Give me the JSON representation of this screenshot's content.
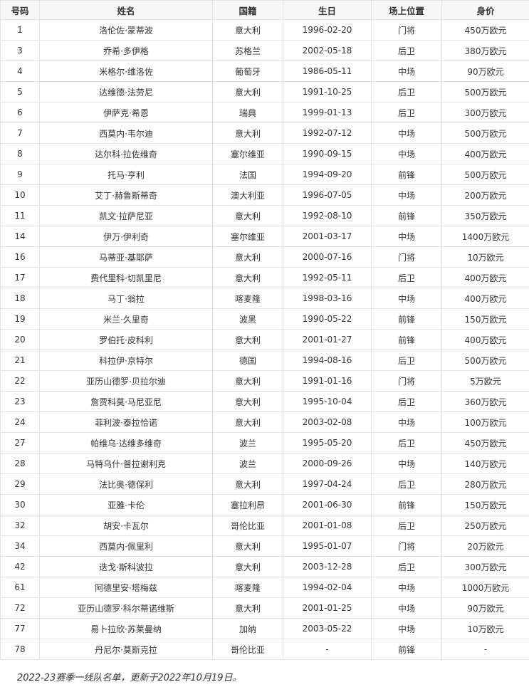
{
  "table": {
    "headers": [
      "号码",
      "姓名",
      "国籍",
      "生日",
      "场上位置",
      "身价"
    ],
    "rows": [
      [
        "1",
        "洛伦佐·蒙蒂波",
        "意大利",
        "1996-02-20",
        "门将",
        "450万欧元"
      ],
      [
        "3",
        "乔希·多伊格",
        "苏格兰",
        "2002-05-18",
        "后卫",
        "380万欧元"
      ],
      [
        "4",
        "米格尔·维洛佐",
        "葡萄牙",
        "1986-05-11",
        "中场",
        "90万欧元"
      ],
      [
        "5",
        "达维德·法劳尼",
        "意大利",
        "1991-10-25",
        "后卫",
        "500万欧元"
      ],
      [
        "6",
        "伊萨克·希恩",
        "瑞典",
        "1999-01-13",
        "后卫",
        "300万欧元"
      ],
      [
        "7",
        "西莫内·韦尔迪",
        "意大利",
        "1992-07-12",
        "中场",
        "500万欧元"
      ],
      [
        "8",
        "达尔科·拉佐维奇",
        "塞尔维亚",
        "1990-09-15",
        "中场",
        "400万欧元"
      ],
      [
        "9",
        "托马·亨利",
        "法国",
        "1994-09-20",
        "前锋",
        "500万欧元"
      ],
      [
        "10",
        "艾丁·赫鲁斯蒂奇",
        "澳大利亚",
        "1996-07-05",
        "中场",
        "200万欧元"
      ],
      [
        "11",
        "凯文·拉萨尼亚",
        "意大利",
        "1992-08-10",
        "前锋",
        "350万欧元"
      ],
      [
        "14",
        "伊万·伊利奇",
        "塞尔维亚",
        "2001-03-17",
        "中场",
        "1400万欧元"
      ],
      [
        "16",
        "马蒂亚·基耶萨",
        "意大利",
        "2000-07-16",
        "门将",
        "10万欧元"
      ],
      [
        "17",
        "费代里科·切凯里尼",
        "意大利",
        "1992-05-11",
        "后卫",
        "400万欧元"
      ],
      [
        "18",
        "马丁·翁拉",
        "喀麦隆",
        "1998-03-16",
        "中场",
        "400万欧元"
      ],
      [
        "19",
        "米兰·久里奇",
        "波黑",
        "1990-05-22",
        "前锋",
        "150万欧元"
      ],
      [
        "20",
        "罗伯托·皮科利",
        "意大利",
        "2001-01-27",
        "前锋",
        "400万欧元"
      ],
      [
        "21",
        "科拉伊·京特尔",
        "德国",
        "1994-08-16",
        "后卫",
        "500万欧元"
      ],
      [
        "22",
        "亚历山德罗·贝拉尔迪",
        "意大利",
        "1991-01-16",
        "门将",
        "5万欧元"
      ],
      [
        "23",
        "詹贾科莫·马尼亚尼",
        "意大利",
        "1995-10-04",
        "后卫",
        "360万欧元"
      ],
      [
        "24",
        "菲利波·泰拉恰诺",
        "意大利",
        "2003-02-08",
        "中场",
        "100万欧元"
      ],
      [
        "27",
        "帕维乌·达维多维奇",
        "波兰",
        "1995-05-20",
        "后卫",
        "450万欧元"
      ],
      [
        "28",
        "马特乌什·普拉谢利克",
        "波兰",
        "2000-09-26",
        "中场",
        "140万欧元"
      ],
      [
        "29",
        "法比奥·德保利",
        "意大利",
        "1997-04-24",
        "后卫",
        "280万欧元"
      ],
      [
        "30",
        "亚雅·卡伦",
        "塞拉利昂",
        "2001-06-30",
        "前锋",
        "150万欧元"
      ],
      [
        "32",
        "胡安·卡瓦尔",
        "哥伦比亚",
        "2001-01-08",
        "后卫",
        "250万欧元"
      ],
      [
        "34",
        "西莫内·佩里利",
        "意大利",
        "1995-01-07",
        "门将",
        "20万欧元"
      ],
      [
        "42",
        "迭戈·斯科波拉",
        "意大利",
        "2003-12-28",
        "后卫",
        "300万欧元"
      ],
      [
        "61",
        "阿德里安·塔梅兹",
        "喀麦隆",
        "1994-02-04",
        "中场",
        "1000万欧元"
      ],
      [
        "72",
        "亚历山德罗·科尔蒂诺维斯",
        "意大利",
        "2001-01-25",
        "中场",
        "90万欧元"
      ],
      [
        "77",
        "易卜拉欣·苏莱曼纳",
        "加纳",
        "2003-05-22",
        "中场",
        "10万欧元"
      ],
      [
        "78",
        "丹尼尔·莫斯克拉",
        "哥伦比亚",
        "-",
        "前锋",
        "-"
      ]
    ]
  },
  "caption": "2022-23赛季一线队名单，更新于2022年10月19日。"
}
